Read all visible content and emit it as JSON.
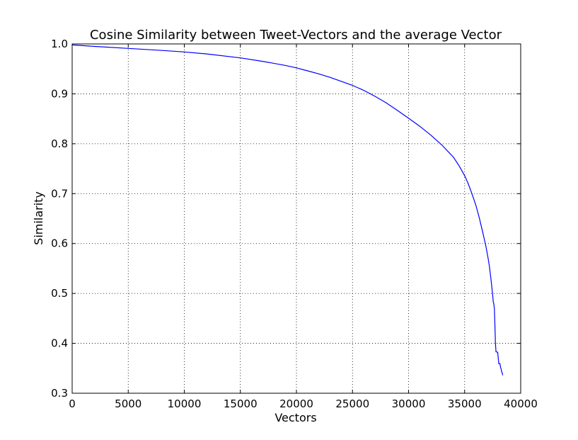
{
  "chart_data": {
    "type": "line",
    "title": "Cosine Similarity between Tweet-Vectors and the average Vector",
    "xlabel": "Vectors",
    "ylabel": "Similarity",
    "xlim": [
      0,
      40000
    ],
    "ylim": [
      0.3,
      1.0
    ],
    "xticks": [
      0,
      5000,
      10000,
      15000,
      20000,
      25000,
      30000,
      35000,
      40000
    ],
    "yticks": [
      0.3,
      0.4,
      0.5,
      0.6,
      0.7,
      0.8,
      0.9,
      1.0
    ],
    "xtick_labels": [
      "0",
      "5000",
      "10000",
      "15000",
      "20000",
      "25000",
      "30000",
      "35000",
      "40000"
    ],
    "ytick_labels": [
      "0.3",
      "0.4",
      "0.5",
      "0.6",
      "0.7",
      "0.8",
      "0.9",
      "1.0"
    ],
    "grid": true,
    "series": [
      {
        "color": "#0000ff",
        "x": [
          0,
          2000,
          5000,
          8000,
          10000,
          12000,
          15000,
          17000,
          19000,
          20000,
          21000,
          22000,
          23000,
          24000,
          25000,
          26000,
          27000,
          28000,
          29000,
          30000,
          31000,
          32000,
          33000,
          34000,
          34500,
          35000,
          35300,
          35600,
          36000,
          36300,
          36600,
          36900,
          37100,
          37200,
          37300,
          37400,
          37500,
          37550,
          37600,
          37650,
          37700,
          37750,
          37800,
          37850,
          37900,
          37950,
          38000,
          38050,
          38100,
          38150,
          38200,
          38250,
          38300,
          38350,
          38400
        ],
        "y": [
          0.998,
          0.995,
          0.991,
          0.987,
          0.984,
          0.98,
          0.972,
          0.965,
          0.957,
          0.952,
          0.946,
          0.94,
          0.933,
          0.925,
          0.917,
          0.907,
          0.895,
          0.882,
          0.867,
          0.851,
          0.835,
          0.817,
          0.797,
          0.773,
          0.756,
          0.736,
          0.721,
          0.703,
          0.677,
          0.652,
          0.624,
          0.594,
          0.57,
          0.556,
          0.538,
          0.518,
          0.497,
          0.483,
          0.479,
          0.47,
          0.44,
          0.4,
          0.383,
          0.383,
          0.382,
          0.382,
          0.37,
          0.359,
          0.359,
          0.359,
          0.352,
          0.349,
          0.343,
          0.341,
          0.336
        ]
      }
    ]
  }
}
